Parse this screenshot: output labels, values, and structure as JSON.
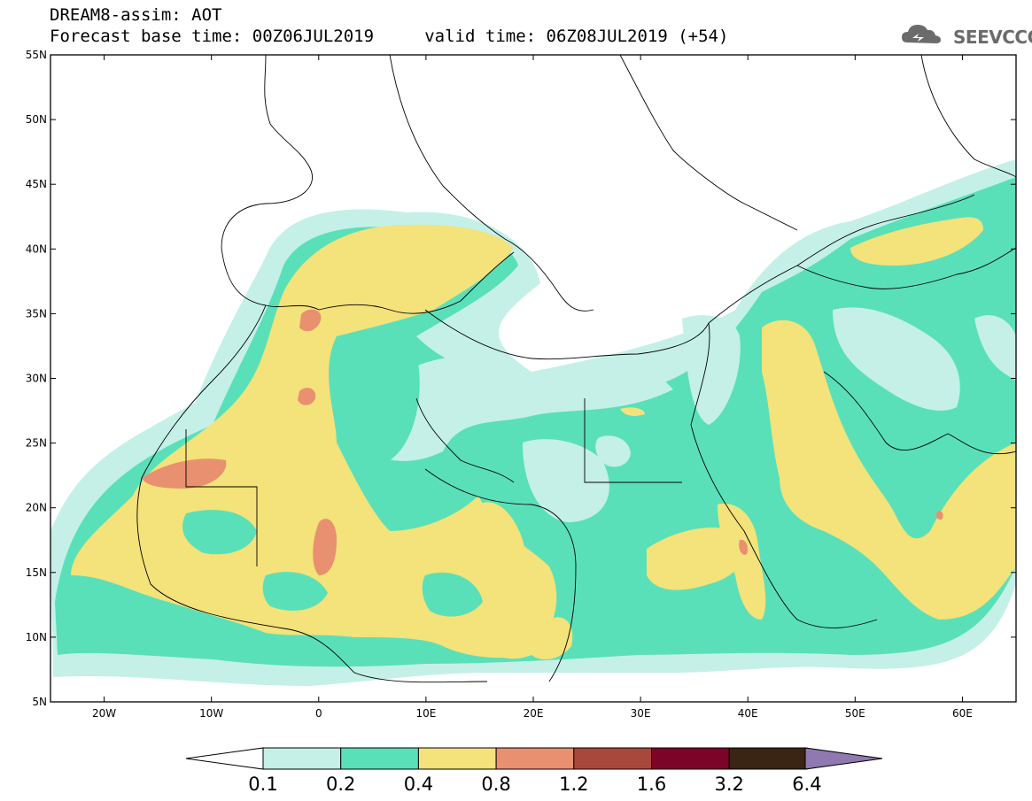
{
  "header": {
    "line1": "DREAM8-assim: AOT",
    "line2": "Forecast base time: 00Z06JUL2019     valid time: 06Z08JUL2019 (+54)"
  },
  "logo": {
    "text": "SEEVCCC",
    "icon": "cloud-logo-icon"
  },
  "map": {
    "lat_ticks": [
      "55N",
      "50N",
      "45N",
      "40N",
      "35N",
      "30N",
      "25N",
      "20N",
      "15N",
      "10N",
      "5N"
    ],
    "lon_ticks": [
      "20W",
      "10W",
      "0",
      "10E",
      "20E",
      "30E",
      "40E",
      "50E",
      "60E"
    ],
    "extent": {
      "lon_min": -25,
      "lon_max": 65,
      "lat_min": 5,
      "lat_max": 55
    }
  },
  "colorbar": {
    "labels": [
      "0.1",
      "0.2",
      "0.4",
      "0.8",
      "1.2",
      "1.6",
      "3.2",
      "6.4"
    ],
    "colors": [
      "#c4f0e8",
      "#5ae0b8",
      "#f4e27a",
      "#e89070",
      "#a8483c",
      "#7c0428",
      "#3a2414",
      "#9078b0"
    ]
  }
}
